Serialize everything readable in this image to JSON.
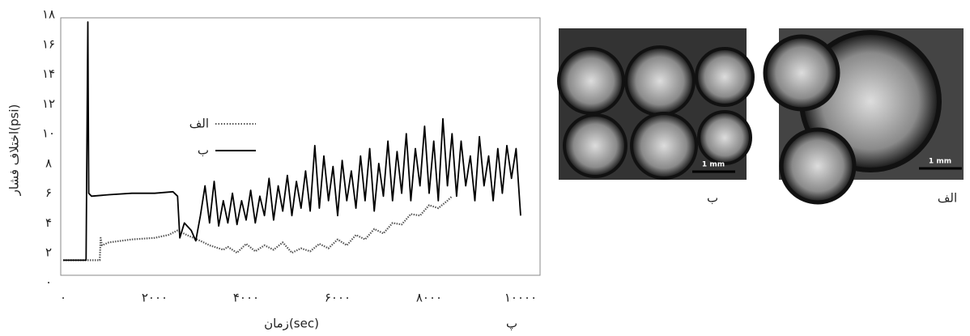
{
  "chart_data": {
    "type": "line",
    "xlabel": "زمان(sec)",
    "ylabel": "اختلاف فشار(psi)",
    "panel_label": "پ",
    "xlim": [
      0,
      10000
    ],
    "ylim": [
      0,
      18
    ],
    "xticks": [
      {
        "value": 0,
        "label": "۰"
      },
      {
        "value": 2000,
        "label": "۲۰۰۰"
      },
      {
        "value": 4000,
        "label": "۴۰۰۰"
      },
      {
        "value": 6000,
        "label": "۶۰۰۰"
      },
      {
        "value": 8000,
        "label": "۸۰۰۰"
      },
      {
        "value": 10000,
        "label": "۱۰۰۰۰"
      }
    ],
    "yticks": [
      {
        "value": 0,
        "label": "۰"
      },
      {
        "value": 2,
        "label": "۲"
      },
      {
        "value": 4,
        "label": "۴"
      },
      {
        "value": 6,
        "label": "۶"
      },
      {
        "value": 8,
        "label": "۸"
      },
      {
        "value": 10,
        "label": "۱۰"
      },
      {
        "value": 12,
        "label": "۱۲"
      },
      {
        "value": 14,
        "label": "۱۴"
      },
      {
        "value": 16,
        "label": "۱۶"
      },
      {
        "value": 18,
        "label": "۱۸"
      }
    ],
    "grid": false,
    "series": [
      {
        "name": "الف",
        "color": "#555555",
        "dash": "dotted",
        "x": [
          0,
          800,
          820,
          850,
          1000,
          1500,
          2000,
          2300,
          2500,
          2700,
          3000,
          3200,
          3500,
          3600,
          3800,
          4000,
          4200,
          4400,
          4600,
          4800,
          5000,
          5200,
          5400,
          5600,
          5800,
          6000,
          6200,
          6400,
          6600,
          6800,
          7000,
          7200,
          7400,
          7600,
          7800,
          8000,
          8200,
          8400,
          8500
        ],
        "values": [
          1.5,
          1.5,
          3,
          2.5,
          2.7,
          2.9,
          3,
          3.2,
          3.5,
          3.2,
          2.8,
          2.5,
          2.2,
          2.4,
          2.0,
          2.6,
          2.1,
          2.5,
          2.2,
          2.7,
          2.0,
          2.3,
          2.1,
          2.6,
          2.3,
          2.9,
          2.5,
          3.2,
          2.9,
          3.6,
          3.3,
          4.0,
          3.9,
          4.6,
          4.5,
          5.2,
          5.0,
          5.5,
          5.8
        ]
      },
      {
        "name": "ب",
        "color": "#000000",
        "dash": "solid",
        "x": [
          0,
          500,
          540,
          560,
          620,
          1000,
          1500,
          2000,
          2400,
          2500,
          2550,
          2650,
          2800,
          2900,
          3000,
          3100,
          3200,
          3300,
          3400,
          3500,
          3600,
          3700,
          3800,
          3900,
          4000,
          4100,
          4200,
          4300,
          4400,
          4500,
          4600,
          4700,
          4800,
          4900,
          5000,
          5100,
          5200,
          5300,
          5400,
          5500,
          5600,
          5700,
          5800,
          5900,
          6000,
          6100,
          6200,
          6300,
          6400,
          6500,
          6600,
          6700,
          6800,
          6900,
          7000,
          7100,
          7200,
          7300,
          7400,
          7500,
          7600,
          7700,
          7800,
          7900,
          8000,
          8100,
          8200,
          8300,
          8400,
          8500,
          8600,
          8700,
          8800,
          8900,
          9000,
          9100,
          9200,
          9300,
          9400,
          9500,
          9600,
          9700,
          9800,
          9900,
          10000
        ],
        "values": [
          1.5,
          1.5,
          17.5,
          6,
          5.8,
          5.9,
          6,
          6,
          6.1,
          5.8,
          3,
          4,
          3.5,
          2.8,
          4.5,
          6.5,
          4,
          6.8,
          3.8,
          5.5,
          4,
          6,
          3.9,
          5.5,
          4.2,
          6.2,
          4,
          5.8,
          4.5,
          7,
          4.2,
          6.5,
          4.8,
          7.2,
          4.5,
          6.8,
          5,
          7.5,
          4.8,
          9.2,
          5,
          8.5,
          5.5,
          7.8,
          4.5,
          8.2,
          5.5,
          7.5,
          5,
          8.5,
          5.5,
          9,
          4.8,
          8,
          5.8,
          9.5,
          5.5,
          8.8,
          6,
          10,
          5.5,
          9,
          6.5,
          10.5,
          6,
          9.5,
          5.5,
          11,
          6.5,
          10,
          5.8,
          9.5,
          6.5,
          8.5,
          5.5,
          9.8,
          6.5,
          8.5,
          5.5,
          9,
          6,
          9.2,
          7,
          9,
          4.5
        ]
      }
    ]
  },
  "images": [
    {
      "caption": "ب",
      "scale_bar": "1 mm"
    },
    {
      "caption": "الف",
      "scale_bar": "1 mm"
    }
  ]
}
